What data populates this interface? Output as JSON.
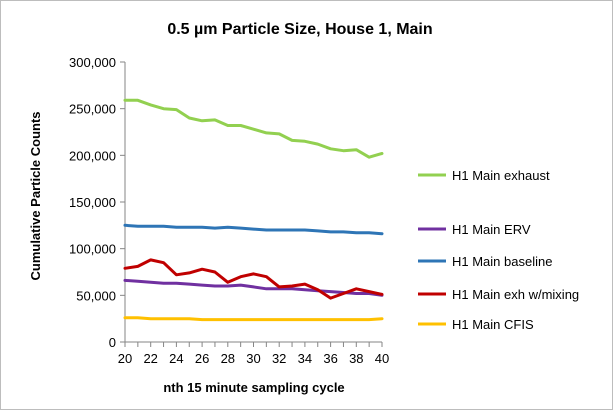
{
  "chart_data": {
    "type": "line",
    "title": "0.5 µm Particle Size, House 1, Main",
    "xlabel": "nth 15 minute sampling cycle",
    "ylabel": "Cumulative Particle Counts",
    "x": [
      20,
      21,
      22,
      23,
      24,
      25,
      26,
      27,
      28,
      29,
      30,
      31,
      32,
      33,
      34,
      35,
      36,
      37,
      38,
      39,
      40
    ],
    "xlim": [
      20,
      40
    ],
    "ylim": [
      0,
      300000
    ],
    "x_ticks": [
      "20",
      "22",
      "24",
      "26",
      "28",
      "30",
      "32",
      "34",
      "36",
      "38",
      "40"
    ],
    "y_ticks": [
      "0",
      "50,000",
      "100,000",
      "150,000",
      "200,000",
      "250,000",
      "300,000"
    ],
    "grid": false,
    "legend_position": "right",
    "series": [
      {
        "name": "H1 Main exhaust",
        "color": "#92d050",
        "values": [
          259000,
          259000,
          254000,
          250000,
          249000,
          240000,
          237000,
          238000,
          232000,
          232000,
          228000,
          224000,
          223000,
          216000,
          215000,
          212000,
          207000,
          205000,
          206000,
          198000,
          202000
        ]
      },
      {
        "name": "H1 Main ERV",
        "color": "#7030a0",
        "values": [
          66000,
          65000,
          64000,
          63000,
          63000,
          62000,
          61000,
          60000,
          60000,
          61000,
          59000,
          57000,
          57000,
          57000,
          56000,
          55000,
          54000,
          53000,
          52000,
          52000,
          50000
        ]
      },
      {
        "name": "H1 Main baseline",
        "color": "#2e75b6",
        "values": [
          125000,
          124000,
          124000,
          124000,
          123000,
          123000,
          123000,
          122000,
          123000,
          122000,
          121000,
          120000,
          120000,
          120000,
          120000,
          119000,
          118000,
          118000,
          117000,
          117000,
          116000
        ]
      },
      {
        "name": "H1 Main exh w/mixing",
        "color": "#c00000",
        "values": [
          79000,
          81000,
          88000,
          85000,
          72000,
          74000,
          78000,
          75000,
          64000,
          70000,
          73000,
          70000,
          59000,
          60000,
          62000,
          56000,
          47000,
          52000,
          57000,
          54000,
          51000
        ]
      },
      {
        "name": "H1 Main CFIS",
        "color": "#ffc000",
        "values": [
          26000,
          26000,
          25000,
          25000,
          25000,
          25000,
          24000,
          24000,
          24000,
          24000,
          24000,
          24000,
          24000,
          24000,
          24000,
          24000,
          24000,
          24000,
          24000,
          24000,
          25000
        ]
      }
    ]
  }
}
